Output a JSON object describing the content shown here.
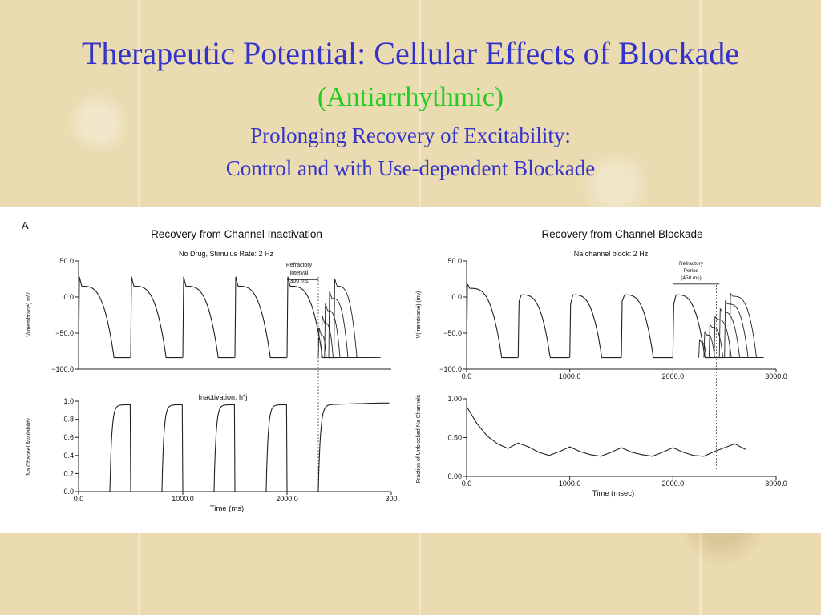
{
  "slide": {
    "title": "Therapeutic Potential:  Cellular Effects of Blockade",
    "subtitle": "(Antiarrhythmic)",
    "heading_line1": "Prolonging Recovery of Excitability:",
    "heading_line2": "Control and with Use-dependent Blockade",
    "colors": {
      "title": "#3333cc",
      "subtitle": "#22cc22",
      "background": "#eadbb0"
    }
  },
  "figure": {
    "panel_label": "A",
    "left_title": "Recovery from Channel Inactivation",
    "left_subtitle": "No Drug,  Stimulus Rate: 2 Hz",
    "left_annotation_1": "Refractory",
    "left_annotation_2": "interval",
    "left_annotation_3": "300 ms",
    "left_bottom_annotation": "Inactivation:  h*j",
    "right_title": "Recovery from Channel Blockade",
    "right_subtitle": "Na channel block: 2 Hz",
    "right_annotation_1": "Refractory",
    "right_annotation_2": "Period",
    "right_annotation_3": "(450 ms)"
  },
  "chart_data": [
    {
      "type": "line",
      "title": "Recovery from Channel Inactivation",
      "subtitle": "No Drug,  Stimulus Rate: 2 Hz",
      "ylabel": "V(membrane) mV",
      "xlabel": "",
      "ylim": [
        -100,
        50
      ],
      "xlim": [
        0,
        3000
      ],
      "y_ticks": [
        "50.0",
        "0.0",
        "−50.0",
        "−100.0"
      ],
      "x_ticks": [],
      "stimulus_times_ms": [
        0,
        500,
        1000,
        1500,
        2000
      ],
      "premature_stimuli_ms": [
        2300,
        2330,
        2360,
        2400,
        2450
      ],
      "resting_potential_mV": -84,
      "peak_mV": 28,
      "plateau_mV": 15,
      "apd_ms": 340
    },
    {
      "type": "line",
      "title": "",
      "annotation": "Inactivation:  h*j",
      "ylabel": "Na Channel Availability",
      "xlabel": "Time (ms)",
      "ylim": [
        0,
        1
      ],
      "xlim": [
        0,
        3000
      ],
      "y_ticks": [
        "1.0",
        "0.8",
        "0.6",
        "0.4",
        "0.2",
        "0.0"
      ],
      "x_ticks": [
        "0.0",
        "1000.0",
        "2000.0",
        "300"
      ],
      "recovery_onsets_ms": [
        300,
        800,
        1300,
        1800,
        2300
      ],
      "max_availability": [
        0.96,
        0.96,
        0.96,
        0.96,
        0.98
      ]
    },
    {
      "type": "line",
      "title": "Recovery from Channel Blockade",
      "subtitle": "Na channel block: 2 Hz",
      "ylabel": "V(membrane) (mv)",
      "xlabel": "",
      "ylim": [
        -100,
        50
      ],
      "xlim": [
        0,
        3000
      ],
      "y_ticks": [
        "50.0",
        "0.0",
        "−50.0",
        "−100.0"
      ],
      "x_ticks": [
        "0.0",
        "1000.0",
        "2000.0",
        "3000.0"
      ],
      "stimulus_times_ms": [
        0,
        500,
        1000,
        1500,
        2000
      ],
      "premature_stimuli_ms": [
        2250,
        2300,
        2350,
        2400,
        2450,
        2500,
        2550
      ],
      "resting_potential_mV": -84,
      "peak_mV": 18,
      "plateau_mV": 5
    },
    {
      "type": "line",
      "title": "",
      "ylabel": "Fraction of Unblocked Na Channels",
      "xlabel": "Time (msec)",
      "ylim": [
        0,
        1
      ],
      "xlim": [
        0,
        3000
      ],
      "y_ticks": [
        "1.00",
        "0.50",
        "0.00"
      ],
      "x_ticks": [
        "0.0",
        "1000.0",
        "2000.0",
        "3000.0"
      ],
      "x": [
        0,
        100,
        200,
        300,
        400,
        500,
        600,
        700,
        800,
        900,
        1000,
        1100,
        1200,
        1300,
        1400,
        1500,
        1600,
        1700,
        1800,
        1900,
        2000,
        2100,
        2200,
        2300,
        2400,
        2500,
        2600,
        2700
      ],
      "y": [
        0.9,
        0.68,
        0.52,
        0.42,
        0.36,
        0.43,
        0.38,
        0.31,
        0.27,
        0.32,
        0.38,
        0.32,
        0.28,
        0.26,
        0.31,
        0.37,
        0.31,
        0.28,
        0.26,
        0.31,
        0.37,
        0.31,
        0.27,
        0.26,
        0.32,
        0.37,
        0.42,
        0.35
      ]
    }
  ]
}
